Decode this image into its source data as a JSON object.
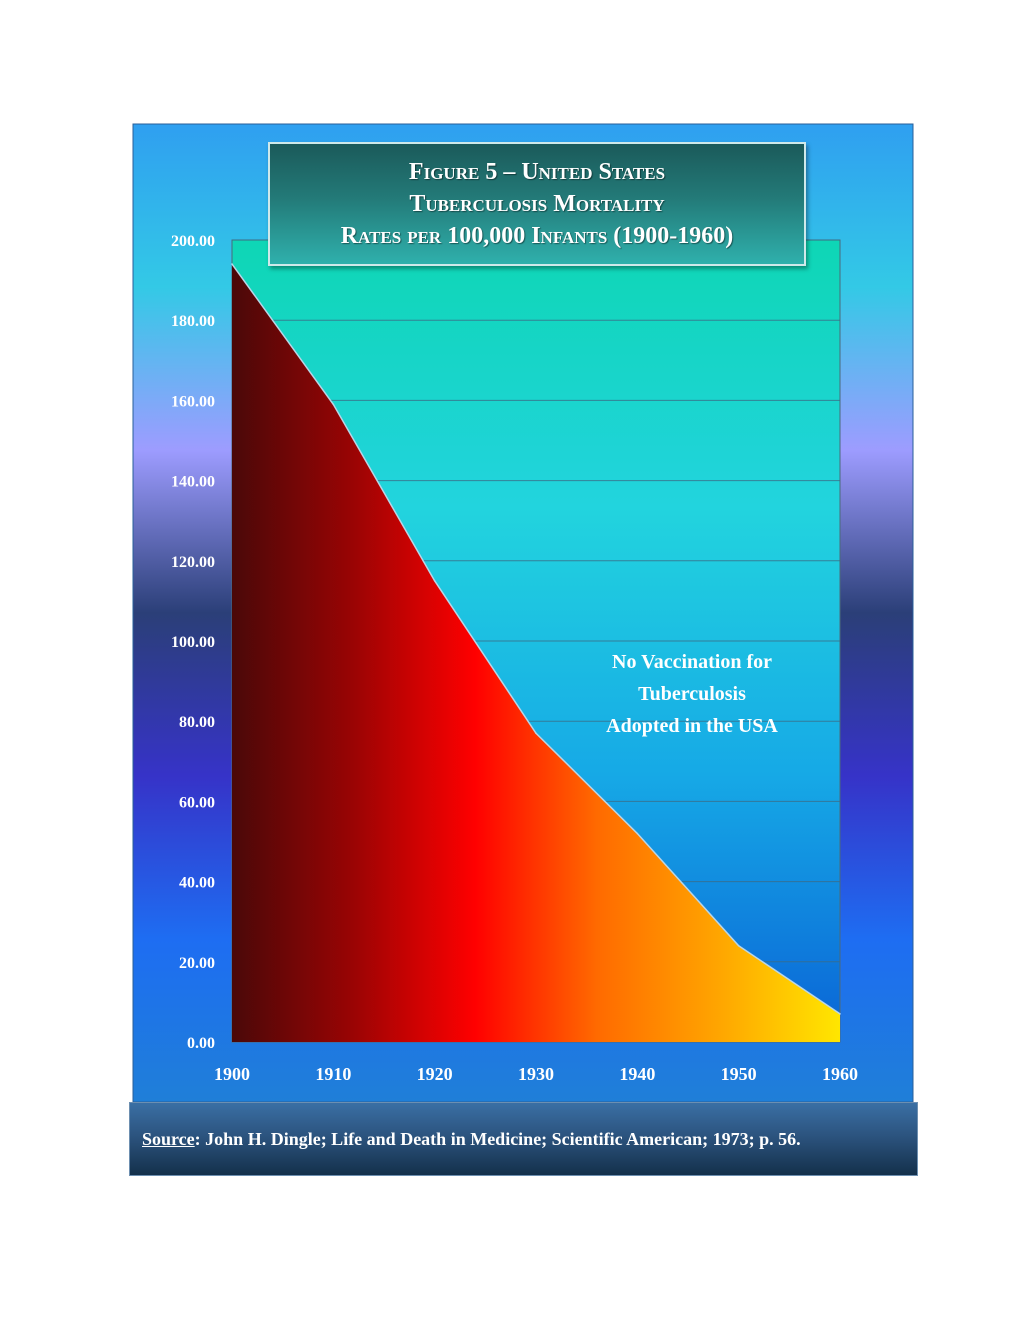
{
  "chart_data": {
    "type": "area",
    "title_lines": [
      {
        "prefix": "Figure 5 – United States",
        "suffix": ""
      },
      {
        "prefix": "Tuberculosis Mortality",
        "suffix": ""
      },
      {
        "prefix": "Rates per 100,000 Infants",
        "suffix": " (1900-1960)"
      }
    ],
    "x": [
      1900,
      1910,
      1920,
      1930,
      1940,
      1950,
      1960
    ],
    "values": [
      194,
      159,
      115,
      77,
      52,
      24,
      7
    ],
    "xlim": [
      1900,
      1960
    ],
    "ylim": [
      0,
      200
    ],
    "x_ticks": [
      "1900",
      "1910",
      "1920",
      "1930",
      "1940",
      "1950",
      "1960"
    ],
    "y_ticks": [
      "0.00",
      "20.00",
      "40.00",
      "60.00",
      "80.00",
      "100.00",
      "120.00",
      "140.00",
      "160.00",
      "180.00",
      "200.00"
    ],
    "grid": true,
    "annotation_lines": [
      "No Vaccination for",
      "Tuberculosis",
      "Adopted in the USA"
    ],
    "fill_gradient": [
      "#4a0808",
      "#9a0404",
      "#ff0000",
      "#ff6a00",
      "#ffa500",
      "#ffe600"
    ],
    "background_gradient": [
      "#2f9ff0",
      "#33c9e6",
      "#9d9cff",
      "#2b3f78",
      "#3633c8",
      "#1e6df2",
      "#1f7fd8"
    ],
    "plot_background_gradient": [
      "#0ed6b5",
      "#22d4de",
      "#16a9e6",
      "#0a63d6"
    ]
  },
  "source": {
    "label": "Source",
    "text": ": John H. Dingle;  Life and Death in Medicine; Scientific American; 1973; p. 56."
  }
}
